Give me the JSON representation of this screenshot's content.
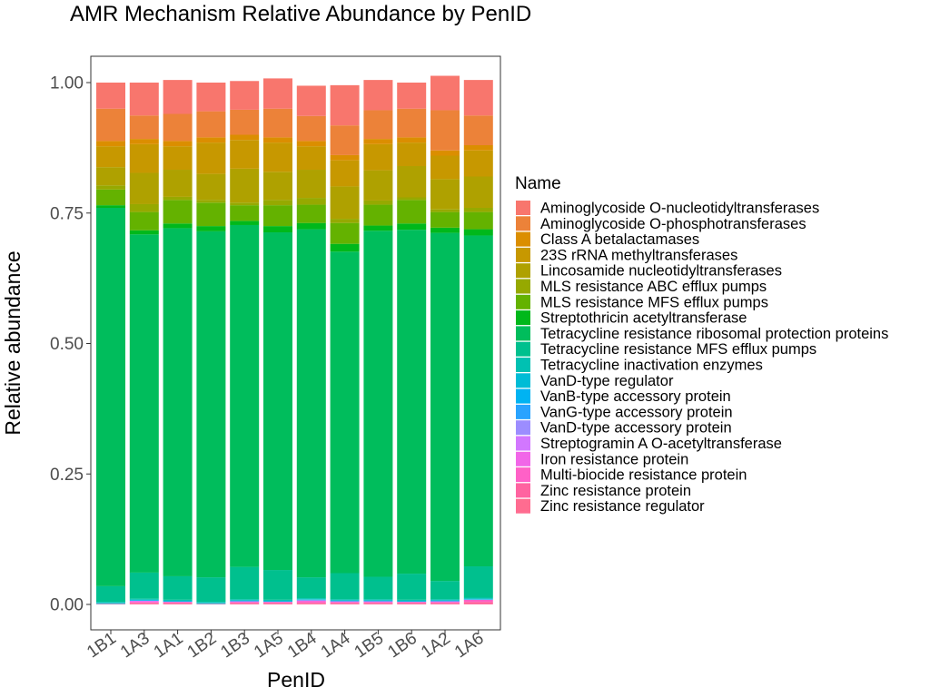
{
  "chart_data": {
    "type": "bar",
    "stacked": true,
    "title": "AMR Mechanism Relative Abundance by PenID",
    "xlabel": "PenID",
    "ylabel": "Relative abundance",
    "ylim": [
      0,
      1
    ],
    "yticks": [
      "0.00",
      "0.25",
      "0.50",
      "0.75",
      "1.00"
    ],
    "ytick_values": [
      0,
      0.25,
      0.5,
      0.75,
      1.0
    ],
    "grid": false,
    "legend_title": "Name",
    "legend_position": "right",
    "categories": [
      "1B1",
      "1A3",
      "1A1",
      "1B2",
      "1B3",
      "1A5",
      "1B4",
      "1A4",
      "1B5",
      "1B6",
      "1A2",
      "1A6"
    ],
    "series": [
      {
        "name": "Aminoglycoside O-nucleotidyltransferases",
        "color": "#F8766D",
        "values": [
          0.05,
          0.063,
          0.065,
          0.055,
          0.055,
          0.058,
          0.058,
          0.077,
          0.058,
          0.05,
          0.066,
          0.068
        ]
      },
      {
        "name": "Aminoglycoside O-phosphotransferases",
        "color": "#EC8239",
        "values": [
          0.062,
          0.045,
          0.052,
          0.05,
          0.048,
          0.055,
          0.048,
          0.057,
          0.055,
          0.055,
          0.077,
          0.057
        ]
      },
      {
        "name": "Class A betalactamases",
        "color": "#DB8E00",
        "values": [
          0.01,
          0.01,
          0.01,
          0.01,
          0.01,
          0.01,
          0.01,
          0.01,
          0.01,
          0.01,
          0.01,
          0.01
        ]
      },
      {
        "name": "23S rRNA methyltransferases",
        "color": "#C79800",
        "values": [
          0.04,
          0.055,
          0.045,
          0.06,
          0.055,
          0.056,
          0.045,
          0.05,
          0.05,
          0.045,
          0.045,
          0.05
        ]
      },
      {
        "name": "Lincosamide nucleotidyltransferases",
        "color": "#AFA100",
        "values": [
          0.035,
          0.06,
          0.052,
          0.05,
          0.065,
          0.054,
          0.054,
          0.062,
          0.058,
          0.06,
          0.058,
          0.06
        ]
      },
      {
        "name": "MLS resistance ABC efflux pumps",
        "color": "#96A900",
        "values": [
          0.008,
          0.015,
          0.006,
          0.005,
          0.005,
          0.01,
          0.013,
          0.008,
          0.008,
          0.005,
          0.005,
          0.008
        ]
      },
      {
        "name": "MLS resistance MFS efflux pumps",
        "color": "#64B200",
        "values": [
          0.03,
          0.035,
          0.045,
          0.045,
          0.03,
          0.04,
          0.035,
          0.04,
          0.04,
          0.045,
          0.03,
          0.033
        ]
      },
      {
        "name": "Streptothricin acetyltransferase",
        "color": "#00B81B",
        "values": [
          0.005,
          0.008,
          0.009,
          0.01,
          0.008,
          0.012,
          0.012,
          0.015,
          0.01,
          0.012,
          0.01,
          0.012
        ]
      },
      {
        "name": "Tetracycline resistance ribosomal protection proteins",
        "color": "#00BD5C",
        "values": [
          0.725,
          0.648,
          0.667,
          0.663,
          0.655,
          0.647,
          0.667,
          0.616,
          0.663,
          0.659,
          0.667,
          0.634
        ]
      },
      {
        "name": "Tetracycline resistance MFS efflux pumps",
        "color": "#00C08E",
        "values": [
          0.03,
          0.05,
          0.045,
          0.047,
          0.062,
          0.057,
          0.04,
          0.05,
          0.043,
          0.05,
          0.035,
          0.06
        ]
      },
      {
        "name": "Tetracycline inactivation enzymes",
        "color": "#00C1B2",
        "values": [
          0.002,
          0.002,
          0.002,
          0.002,
          0.002,
          0.002,
          0.002,
          0.002,
          0.002,
          0.002,
          0.002,
          0.002
        ]
      },
      {
        "name": "VanD-type regulator",
        "color": "#00BCD6",
        "values": [
          0.001,
          0.001,
          0.001,
          0.001,
          0.001,
          0.001,
          0.001,
          0.001,
          0.001,
          0.001,
          0.001,
          0.001
        ]
      },
      {
        "name": "VanB-type accessory protein",
        "color": "#00B3F2",
        "values": [
          0.001,
          0.001,
          0.001,
          0.001,
          0.001,
          0.001,
          0.001,
          0.001,
          0.001,
          0.001,
          0.001,
          0.001
        ]
      },
      {
        "name": "VanG-type accessory protein",
        "color": "#29A3FF",
        "values": [
          0.0,
          0.0,
          0.0,
          0.0,
          0.0,
          0.0,
          0.0,
          0.0,
          0.0,
          0.0,
          0.0,
          0.0
        ]
      },
      {
        "name": "VanD-type accessory protein",
        "color": "#9C8DFF",
        "values": [
          0.0,
          0.0,
          0.0,
          0.0,
          0.0,
          0.0,
          0.0,
          0.0,
          0.0,
          0.0,
          0.0,
          0.0
        ]
      },
      {
        "name": "Streptogramin A O-acetyltransferase",
        "color": "#D277FF",
        "values": [
          0.0,
          0.001,
          0.0,
          0.0,
          0.001,
          0.0,
          0.001,
          0.001,
          0.001,
          0.0,
          0.001,
          0.0
        ]
      },
      {
        "name": "Iron resistance protein",
        "color": "#F166E8",
        "values": [
          0.0,
          0.001,
          0.0,
          0.0,
          0.0,
          0.0,
          0.001,
          0.0,
          0.0,
          0.0,
          0.0,
          0.0
        ]
      },
      {
        "name": "Multi-biocide resistance protein",
        "color": "#FF61C7",
        "values": [
          0.0,
          0.002,
          0.002,
          0.0,
          0.002,
          0.002,
          0.003,
          0.002,
          0.002,
          0.002,
          0.002,
          0.004
        ]
      },
      {
        "name": "Zinc resistance protein",
        "color": "#FF63A0",
        "values": [
          0.0,
          0.002,
          0.002,
          0.0,
          0.002,
          0.002,
          0.002,
          0.002,
          0.002,
          0.002,
          0.002,
          0.004
        ]
      },
      {
        "name": "Zinc resistance regulator",
        "color": "#FF6C90",
        "values": [
          0.001,
          0.001,
          0.001,
          0.001,
          0.001,
          0.001,
          0.001,
          0.001,
          0.001,
          0.001,
          0.001,
          0.001
        ]
      }
    ]
  }
}
